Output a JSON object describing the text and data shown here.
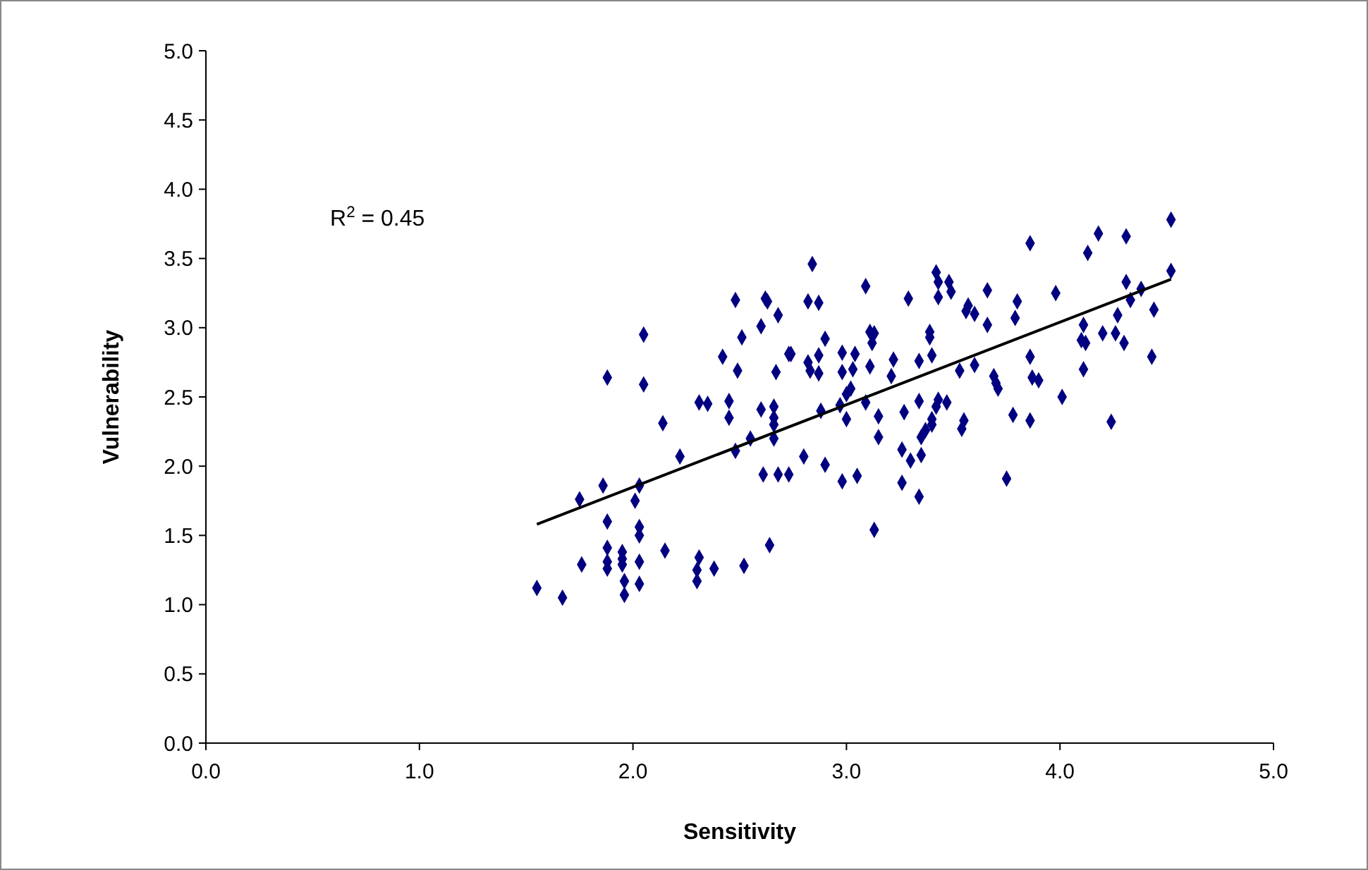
{
  "chart_data": {
    "type": "scatter",
    "xlabel": "Sensitivity",
    "ylabel": "Vulnerability",
    "annotations": [
      "R$^{2}$ = 0.45"
    ],
    "xlim": [
      0,
      5
    ],
    "ylim": [
      0,
      5
    ],
    "xticks": [
      {
        "value": 0,
        "label": "0.0"
      },
      {
        "value": 1,
        "label": "1.0"
      },
      {
        "value": 2,
        "label": "2.0"
      },
      {
        "value": 3,
        "label": "3.0"
      },
      {
        "value": 4,
        "label": "4.0"
      },
      {
        "value": 5,
        "label": "5.0"
      }
    ],
    "yticks": [
      {
        "value": 0,
        "label": "0.0"
      },
      {
        "value": 0.5,
        "label": "0.5"
      },
      {
        "value": 1,
        "label": "1.0"
      },
      {
        "value": 1.5,
        "label": "1.5"
      },
      {
        "value": 2,
        "label": "2.0"
      },
      {
        "value": 2.5,
        "label": "2.5"
      },
      {
        "value": 3,
        "label": "3.0"
      },
      {
        "value": 3.5,
        "label": "3.5"
      },
      {
        "value": 4,
        "label": "4.0"
      },
      {
        "value": 4.5,
        "label": "4.5"
      },
      {
        "value": 5,
        "label": "5.0"
      }
    ],
    "grid": false,
    "marker": "diamond",
    "series": [
      {
        "color": "#000080",
        "x": [
          1.55,
          1.67,
          1.75,
          1.76,
          1.86,
          1.88,
          1.88,
          1.88,
          1.88,
          1.88,
          1.95,
          1.95,
          1.95,
          1.96,
          1.96,
          2.01,
          2.03,
          2.03,
          2.03,
          2.03,
          2.03,
          2.05,
          2.05,
          2.14,
          2.15,
          2.22,
          2.31,
          2.3,
          2.3,
          2.31,
          2.35,
          2.38,
          2.42,
          2.45,
          2.45,
          2.48,
          2.49,
          2.48,
          2.51,
          2.52,
          2.55,
          2.6,
          2.6,
          2.61,
          2.62,
          2.63,
          2.66,
          2.66,
          2.66,
          2.66,
          2.64,
          2.68,
          2.67,
          2.68,
          2.73,
          2.73,
          2.84,
          2.82,
          2.87,
          2.74,
          2.82,
          2.83,
          2.87,
          2.87,
          2.9,
          2.8,
          2.9,
          2.88,
          2.98,
          2.98,
          3.03,
          3.04,
          3.02,
          3.0,
          2.97,
          3.0,
          2.98,
          3.05,
          3.09,
          3.11,
          3.13,
          3.12,
          3.11,
          3.09,
          3.15,
          3.15,
          3.13,
          3.22,
          3.21,
          3.29,
          3.34,
          3.4,
          3.39,
          3.39,
          3.42,
          3.43,
          3.43,
          3.48,
          3.49,
          3.27,
          3.34,
          3.43,
          3.42,
          3.47,
          3.4,
          3.4,
          3.37,
          3.35,
          3.35,
          3.3,
          3.26,
          3.26,
          3.34,
          3.55,
          3.54,
          3.53,
          3.57,
          3.56,
          3.6,
          3.6,
          3.66,
          3.66,
          3.69,
          3.7,
          3.71,
          3.8,
          3.79,
          3.78,
          3.75,
          3.86,
          3.87,
          3.9,
          3.86,
          3.86,
          3.98,
          4.01,
          4.18,
          4.13,
          4.31,
          4.52,
          4.52,
          4.31,
          4.38,
          4.33,
          4.44,
          4.27,
          4.11,
          4.1,
          4.12,
          4.2,
          4.26,
          4.3,
          4.11,
          4.43,
          4.24
        ],
        "values": [
          1.12,
          1.05,
          1.76,
          1.29,
          1.86,
          1.6,
          1.41,
          1.31,
          1.26,
          2.64,
          1.38,
          1.33,
          1.29,
          1.17,
          1.07,
          1.75,
          1.56,
          1.5,
          1.31,
          1.15,
          1.86,
          2.95,
          2.59,
          2.31,
          1.39,
          2.07,
          1.34,
          1.25,
          1.17,
          2.46,
          2.45,
          1.26,
          2.79,
          2.47,
          2.35,
          3.2,
          2.69,
          2.11,
          2.93,
          1.28,
          2.2,
          3.01,
          2.41,
          1.94,
          3.21,
          3.19,
          2.43,
          2.35,
          2.3,
          2.2,
          1.43,
          3.09,
          2.68,
          1.94,
          2.81,
          1.94,
          3.46,
          3.19,
          3.18,
          2.81,
          2.75,
          2.69,
          2.8,
          2.67,
          2.92,
          2.07,
          2.01,
          2.4,
          2.82,
          2.68,
          2.7,
          2.81,
          2.56,
          2.52,
          2.44,
          2.34,
          1.89,
          1.93,
          3.3,
          2.97,
          2.96,
          2.89,
          2.72,
          2.46,
          2.36,
          2.21,
          1.54,
          2.77,
          2.65,
          3.21,
          2.76,
          2.8,
          2.97,
          2.93,
          3.4,
          3.33,
          3.22,
          3.33,
          3.26,
          2.39,
          2.47,
          2.48,
          2.43,
          2.46,
          2.34,
          2.3,
          2.26,
          2.21,
          2.08,
          2.04,
          2.12,
          1.88,
          1.78,
          2.33,
          2.27,
          2.69,
          3.16,
          3.12,
          3.1,
          2.73,
          3.27,
          3.02,
          2.65,
          2.6,
          2.56,
          3.19,
          3.07,
          2.37,
          1.91,
          2.79,
          2.64,
          2.62,
          2.33,
          3.61,
          3.25,
          2.5,
          3.68,
          3.54,
          3.66,
          3.78,
          3.41,
          3.33,
          3.28,
          3.2,
          3.13,
          3.09,
          3.02,
          2.91,
          2.89,
          2.96,
          2.96,
          2.89,
          2.7,
          2.79,
          2.32
        ]
      },
      {
        "type": "line",
        "color": "#000000",
        "x": [
          1.55,
          4.52
        ],
        "values": [
          1.58,
          3.35
        ],
        "marker": "none",
        "line_style": "solid"
      }
    ]
  }
}
